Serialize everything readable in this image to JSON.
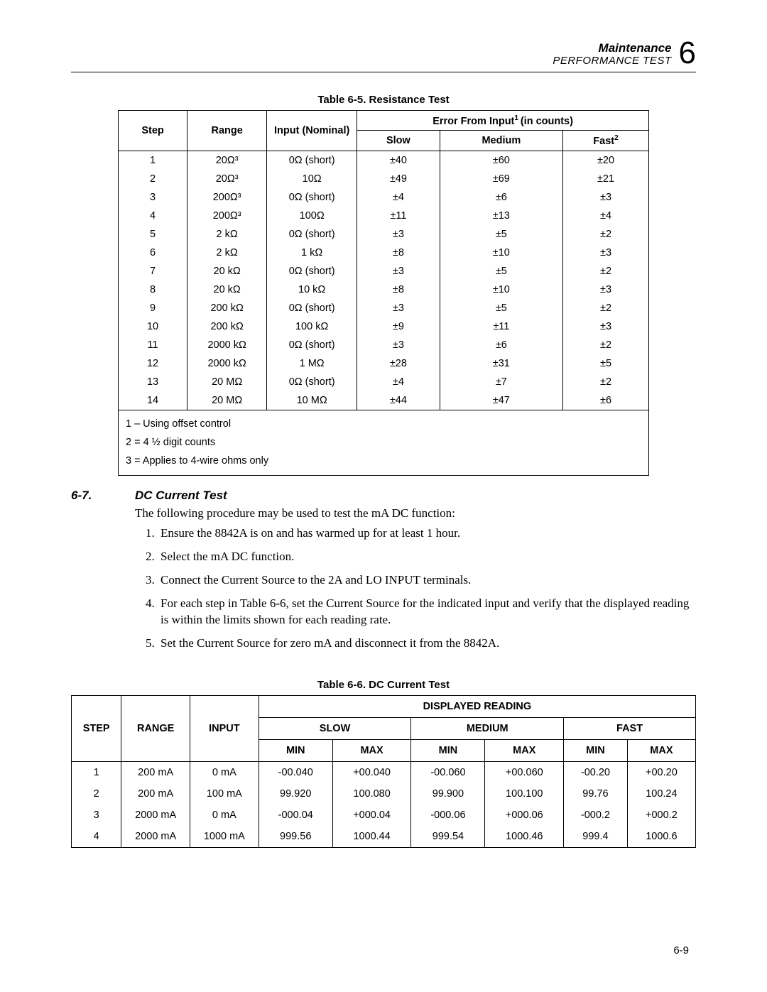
{
  "header": {
    "title": "Maintenance",
    "subtitle": "PERFORMANCE TEST",
    "chapter": "6"
  },
  "table1": {
    "caption": "Table 6-5. Resistance Test",
    "h_step": "Step",
    "h_range": "Range",
    "h_input": "Input (Nominal)",
    "h_error_pre": "Error From Input",
    "h_error_post": "(in counts)",
    "h_slow": "Slow",
    "h_medium": "Medium",
    "h_fast_pre": "Fast",
    "rows": [
      {
        "step": "1",
        "range": "20Ω³",
        "input": "0Ω (short)",
        "slow": "±40",
        "medium": "±60",
        "fast": "±20"
      },
      {
        "step": "2",
        "range": "20Ω³",
        "input": "10Ω",
        "slow": "±49",
        "medium": "±69",
        "fast": "±21"
      },
      {
        "step": "3",
        "range": "200Ω³",
        "input": "0Ω (short)",
        "slow": "±4",
        "medium": "±6",
        "fast": "±3"
      },
      {
        "step": "4",
        "range": "200Ω³",
        "input": "100Ω",
        "slow": "±11",
        "medium": "±13",
        "fast": "±4"
      },
      {
        "step": "5",
        "range": "2 kΩ",
        "input": "0Ω (short)",
        "slow": "±3",
        "medium": "±5",
        "fast": "±2"
      },
      {
        "step": "6",
        "range": "2 kΩ",
        "input": "1 kΩ",
        "slow": "±8",
        "medium": "±10",
        "fast": "±3"
      },
      {
        "step": "7",
        "range": "20 kΩ",
        "input": "0Ω (short)",
        "slow": "±3",
        "medium": "±5",
        "fast": "±2"
      },
      {
        "step": "8",
        "range": "20 kΩ",
        "input": "10 kΩ",
        "slow": "±8",
        "medium": "±10",
        "fast": "±3"
      },
      {
        "step": "9",
        "range": "200 kΩ",
        "input": "0Ω (short)",
        "slow": "±3",
        "medium": "±5",
        "fast": "±2"
      },
      {
        "step": "10",
        "range": "200 kΩ",
        "input": "100 kΩ",
        "slow": "±9",
        "medium": "±11",
        "fast": "±3"
      },
      {
        "step": "11",
        "range": "2000 kΩ",
        "input": "0Ω (short)",
        "slow": "±3",
        "medium": "±6",
        "fast": "±2"
      },
      {
        "step": "12",
        "range": "2000 kΩ",
        "input": "1 MΩ",
        "slow": "±28",
        "medium": "±31",
        "fast": "±5"
      },
      {
        "step": "13",
        "range": "20 MΩ",
        "input": "0Ω (short)",
        "slow": "±4",
        "medium": "±7",
        "fast": "±2"
      },
      {
        "step": "14",
        "range": "20 MΩ",
        "input": "10 MΩ",
        "slow": "±44",
        "medium": "±47",
        "fast": "±6"
      }
    ],
    "note1": "1 – Using offset control",
    "note2": "2 = 4 ½ digit counts",
    "note3": "3 = Applies to 4-wire ohms only"
  },
  "section": {
    "num": "6-7.",
    "title": "DC Current Test",
    "para": "The following procedure may be used to test the mA DC function:",
    "steps": [
      "Ensure the 8842A is on and has warmed up for at least 1 hour.",
      "Select the mA DC function.",
      "Connect the Current Source to the 2A and LO INPUT terminals.",
      "For each step in Table 6-6, set the Current Source for the indicated input and verify that the displayed reading is within the limits shown for each reading rate.",
      "Set the Current Source for zero mA and disconnect it from the 8842A."
    ]
  },
  "table2": {
    "caption": "Table 6-6. DC Current Test",
    "h_step": "STEP",
    "h_range": "RANGE",
    "h_input": "INPUT",
    "h_disp": "DISPLAYED READING",
    "h_slow": "SLOW",
    "h_medium": "MEDIUM",
    "h_fast": "FAST",
    "h_min": "MIN",
    "h_max": "MAX",
    "rows": [
      {
        "step": "1",
        "range": "200 mA",
        "input": "0 mA",
        "smin": "-00.040",
        "smax": "+00.040",
        "mmin": "-00.060",
        "mmax": "+00.060",
        "fmin": "-00.20",
        "fmax": "+00.20"
      },
      {
        "step": "2",
        "range": "200 mA",
        "input": "100 mA",
        "smin": "99.920",
        "smax": "100.080",
        "mmin": "99.900",
        "mmax": "100.100",
        "fmin": "99.76",
        "fmax": "100.24"
      },
      {
        "step": "3",
        "range": "2000 mA",
        "input": "0 mA",
        "smin": "-000.04",
        "smax": "+000.04",
        "mmin": "-000.06",
        "mmax": "+000.06",
        "fmin": "-000.2",
        "fmax": "+000.2"
      },
      {
        "step": "4",
        "range": "2000 mA",
        "input": "1000 mA",
        "smin": "999.56",
        "smax": "1000.44",
        "mmin": "999.54",
        "mmax": "1000.46",
        "fmin": "999.4",
        "fmax": "1000.6"
      }
    ]
  },
  "page_num": "6-9"
}
